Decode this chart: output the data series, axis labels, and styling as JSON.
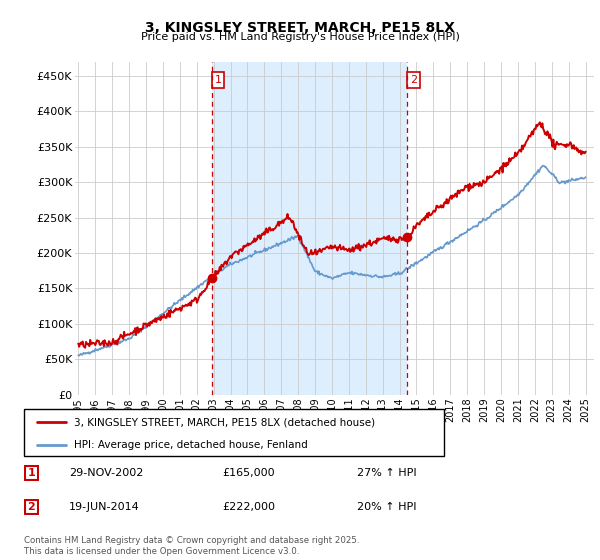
{
  "title": "3, KINGSLEY STREET, MARCH, PE15 8LX",
  "subtitle": "Price paid vs. HM Land Registry's House Price Index (HPI)",
  "ylabel_ticks": [
    "£0",
    "£50K",
    "£100K",
    "£150K",
    "£200K",
    "£250K",
    "£300K",
    "£350K",
    "£400K",
    "£450K"
  ],
  "ytick_values": [
    0,
    50000,
    100000,
    150000,
    200000,
    250000,
    300000,
    350000,
    400000,
    450000
  ],
  "ylim": [
    0,
    470000
  ],
  "xlim_start": 1994.8,
  "xlim_end": 2025.5,
  "vline1_x": 2002.91,
  "vline2_x": 2014.46,
  "marker1_x": 2002.91,
  "marker1_y": 165000,
  "marker2_x": 2014.46,
  "marker2_y": 222000,
  "hpi_color": "#6699cc",
  "price_color": "#cc0000",
  "vline_color": "#cc0000",
  "shade_color": "#ddeeff",
  "background_color": "#ffffff",
  "grid_color": "#cccccc",
  "legend_label_price": "3, KINGSLEY STREET, MARCH, PE15 8LX (detached house)",
  "legend_label_hpi": "HPI: Average price, detached house, Fenland",
  "table_rows": [
    {
      "num": "1",
      "date": "29-NOV-2002",
      "price": "£165,000",
      "change": "27% ↑ HPI"
    },
    {
      "num": "2",
      "date": "19-JUN-2014",
      "price": "£222,000",
      "change": "20% ↑ HPI"
    }
  ],
  "footnote": "Contains HM Land Registry data © Crown copyright and database right 2025.\nThis data is licensed under the Open Government Licence v3.0.",
  "xtick_years": [
    1995,
    1996,
    1997,
    1998,
    1999,
    2000,
    2001,
    2002,
    2003,
    2004,
    2005,
    2006,
    2007,
    2008,
    2009,
    2010,
    2011,
    2012,
    2013,
    2014,
    2015,
    2016,
    2017,
    2018,
    2019,
    2020,
    2021,
    2022,
    2023,
    2024,
    2025
  ]
}
